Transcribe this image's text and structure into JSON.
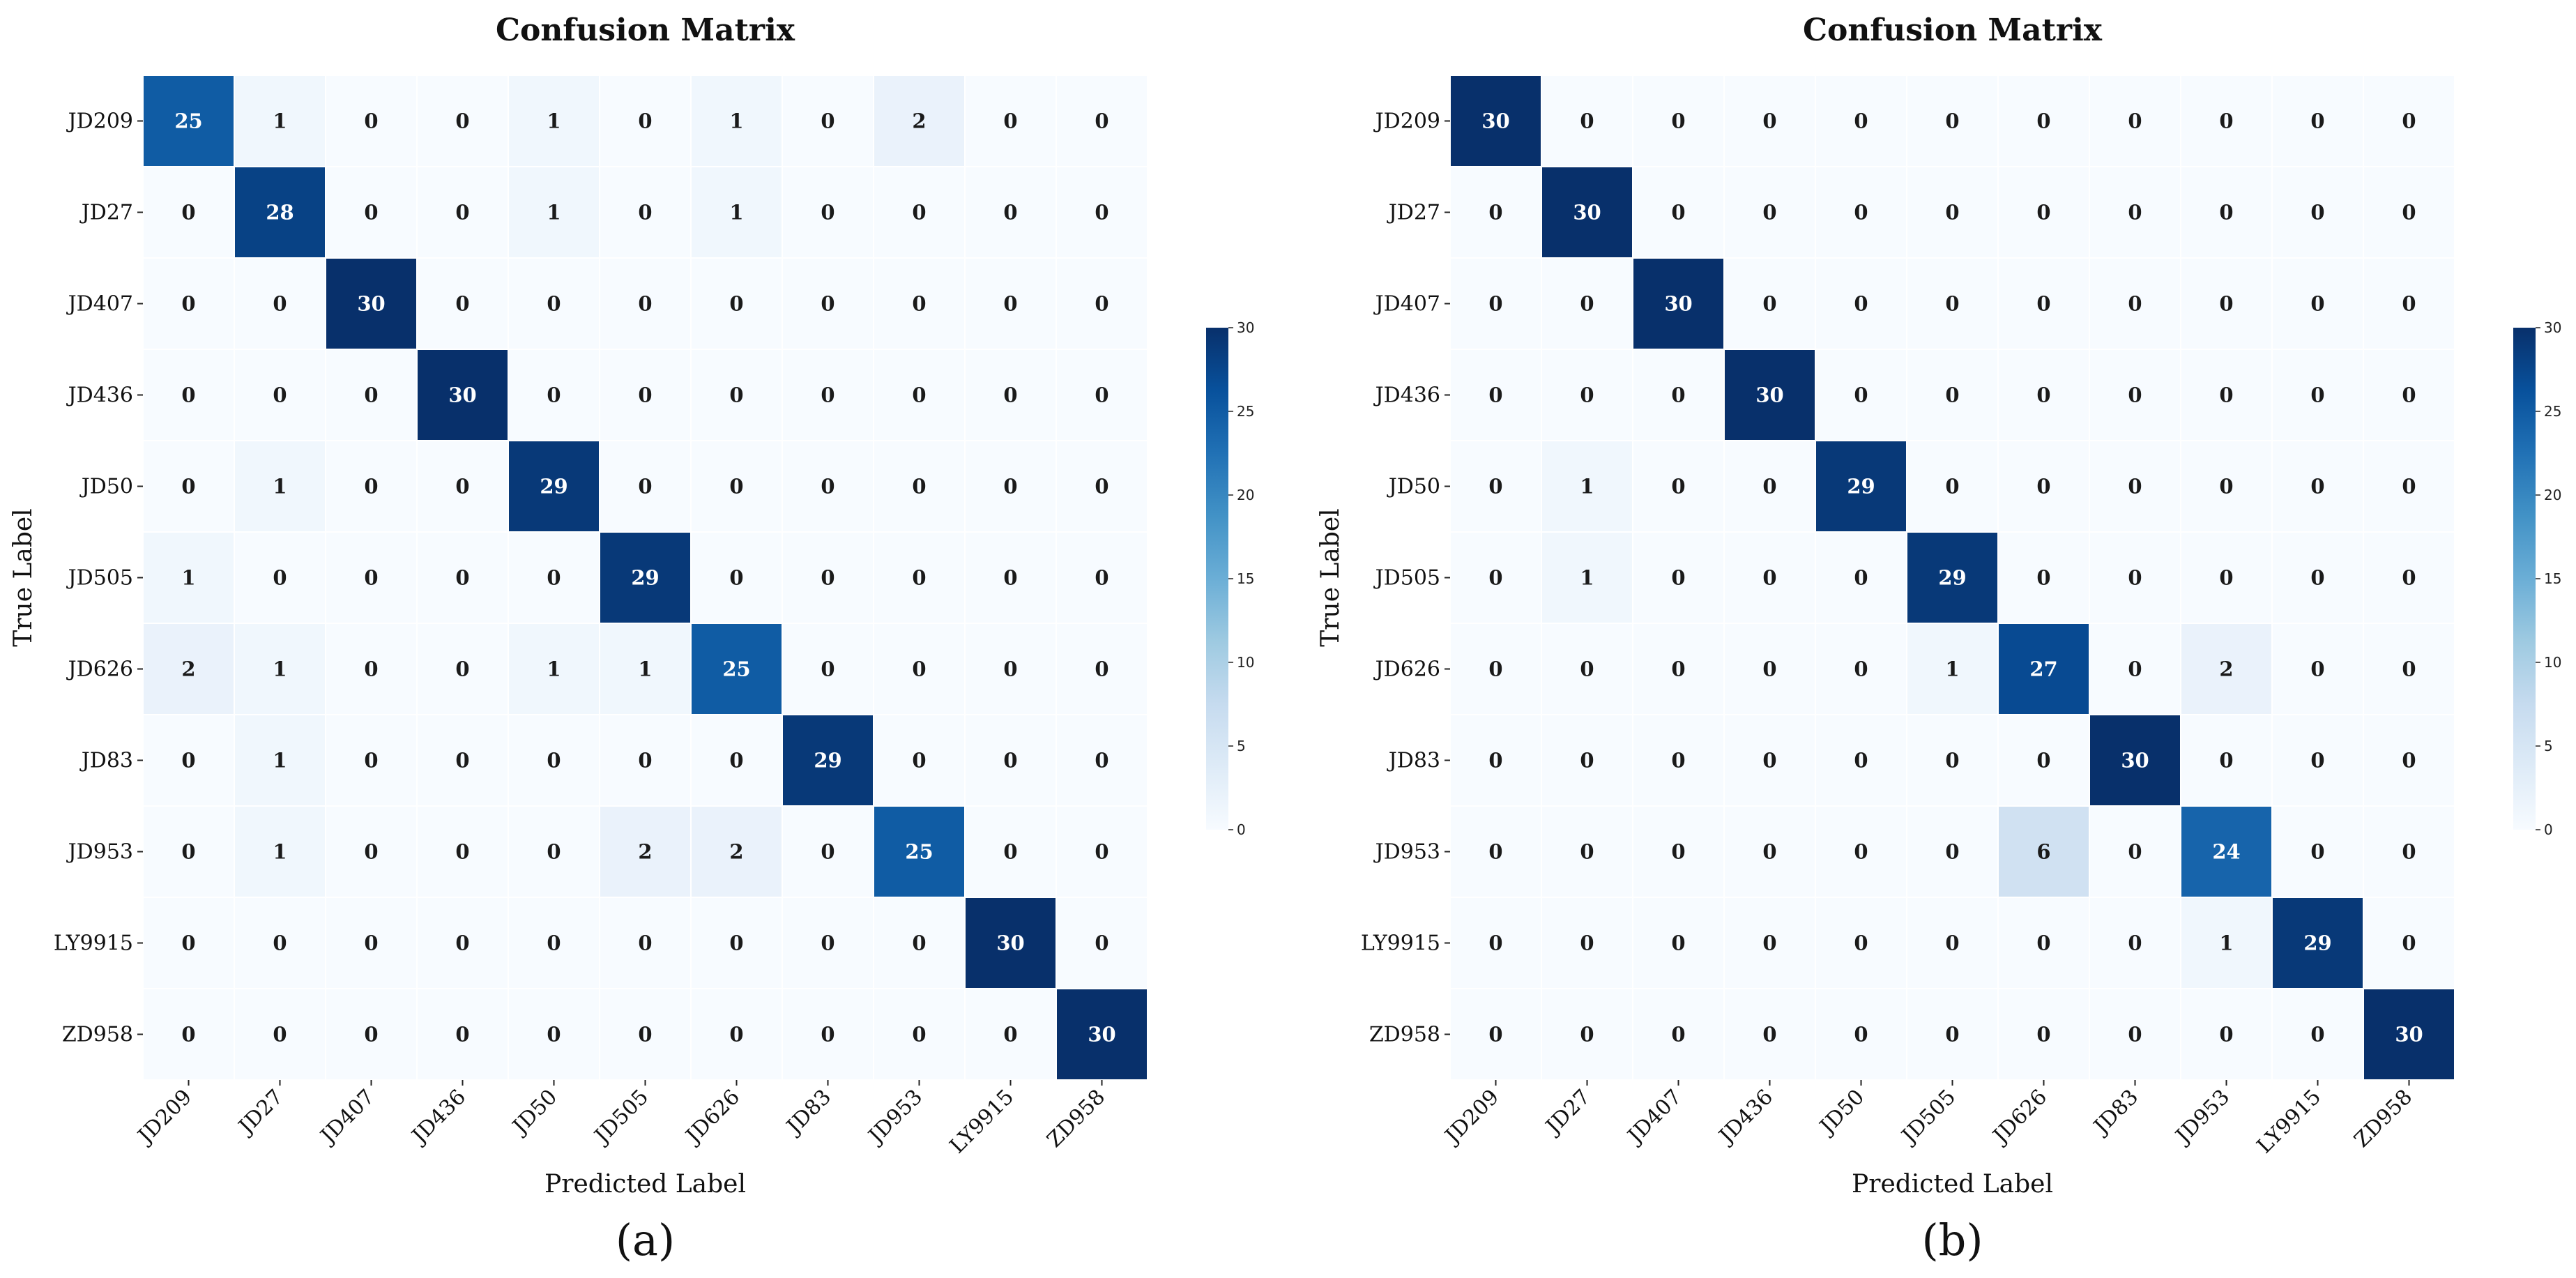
{
  "chart_data": [
    {
      "type": "heatmap",
      "subfigure": "(a)",
      "title": "Confusion Matrix",
      "xlabel": "Predicted Label",
      "ylabel": "True Label",
      "labels": [
        "JD209",
        "JD27",
        "JD407",
        "JD436",
        "JD50",
        "JD505",
        "JD626",
        "JD83",
        "JD953",
        "LY9915",
        "ZD958"
      ],
      "matrix": [
        [
          25,
          1,
          0,
          0,
          1,
          0,
          1,
          0,
          2,
          0,
          0
        ],
        [
          0,
          28,
          0,
          0,
          1,
          0,
          1,
          0,
          0,
          0,
          0
        ],
        [
          0,
          0,
          30,
          0,
          0,
          0,
          0,
          0,
          0,
          0,
          0
        ],
        [
          0,
          0,
          0,
          30,
          0,
          0,
          0,
          0,
          0,
          0,
          0
        ],
        [
          0,
          1,
          0,
          0,
          29,
          0,
          0,
          0,
          0,
          0,
          0
        ],
        [
          1,
          0,
          0,
          0,
          0,
          29,
          0,
          0,
          0,
          0,
          0
        ],
        [
          2,
          1,
          0,
          0,
          1,
          1,
          25,
          0,
          0,
          0,
          0
        ],
        [
          0,
          1,
          0,
          0,
          0,
          0,
          0,
          29,
          0,
          0,
          0
        ],
        [
          0,
          1,
          0,
          0,
          0,
          2,
          2,
          0,
          25,
          0,
          0
        ],
        [
          0,
          0,
          0,
          0,
          0,
          0,
          0,
          0,
          0,
          30,
          0
        ],
        [
          0,
          0,
          0,
          0,
          0,
          0,
          0,
          0,
          0,
          0,
          30
        ]
      ],
      "colorbar": {
        "min": 0,
        "max": 30,
        "ticks": [
          0,
          5,
          10,
          15,
          20,
          25,
          30
        ]
      }
    },
    {
      "type": "heatmap",
      "subfigure": "(b)",
      "title": "Confusion Matrix",
      "xlabel": "Predicted Label",
      "ylabel": "True Label",
      "labels": [
        "JD209",
        "JD27",
        "JD407",
        "JD436",
        "JD50",
        "JD505",
        "JD626",
        "JD83",
        "JD953",
        "LY9915",
        "ZD958"
      ],
      "matrix": [
        [
          30,
          0,
          0,
          0,
          0,
          0,
          0,
          0,
          0,
          0,
          0
        ],
        [
          0,
          30,
          0,
          0,
          0,
          0,
          0,
          0,
          0,
          0,
          0
        ],
        [
          0,
          0,
          30,
          0,
          0,
          0,
          0,
          0,
          0,
          0,
          0
        ],
        [
          0,
          0,
          0,
          30,
          0,
          0,
          0,
          0,
          0,
          0,
          0
        ],
        [
          0,
          1,
          0,
          0,
          29,
          0,
          0,
          0,
          0,
          0,
          0
        ],
        [
          0,
          1,
          0,
          0,
          0,
          29,
          0,
          0,
          0,
          0,
          0
        ],
        [
          0,
          0,
          0,
          0,
          0,
          1,
          27,
          0,
          2,
          0,
          0
        ],
        [
          0,
          0,
          0,
          0,
          0,
          0,
          0,
          30,
          0,
          0,
          0
        ],
        [
          0,
          0,
          0,
          0,
          0,
          0,
          6,
          0,
          24,
          0,
          0
        ],
        [
          0,
          0,
          0,
          0,
          0,
          0,
          0,
          0,
          1,
          29,
          0
        ],
        [
          0,
          0,
          0,
          0,
          0,
          0,
          0,
          0,
          0,
          0,
          30
        ]
      ],
      "colorbar": {
        "min": 0,
        "max": 30,
        "ticks": [
          0,
          5,
          10,
          15,
          20,
          25,
          30
        ]
      }
    }
  ],
  "colors": {
    "low": "#f7fbff",
    "high": "#08306b",
    "grid": "#ffffff"
  }
}
